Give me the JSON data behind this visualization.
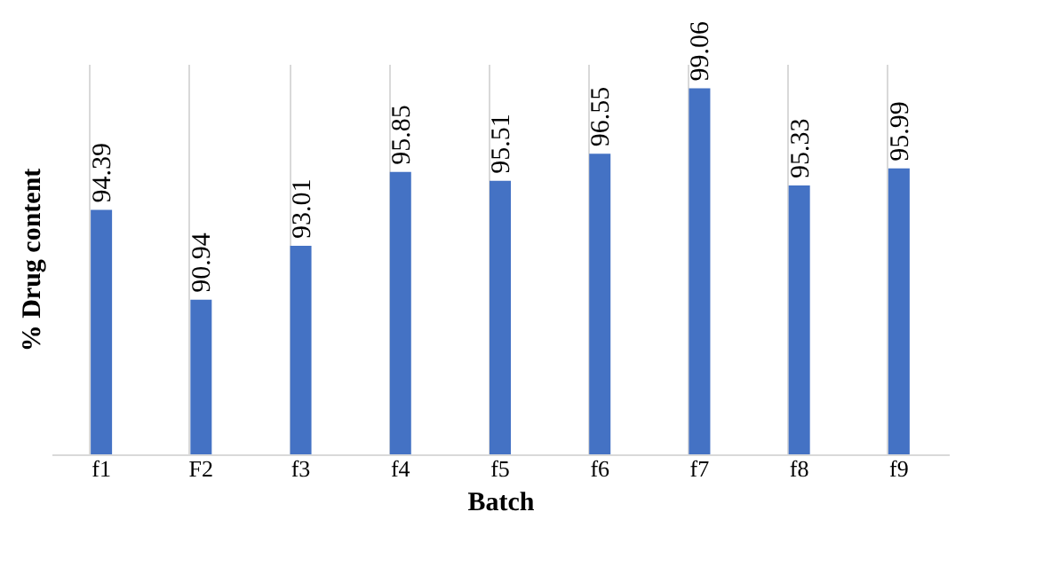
{
  "chart_data": {
    "type": "bar",
    "xlabel": "Batch",
    "ylabel": "% Drug content",
    "categories": [
      "f1",
      "F2",
      "f3",
      "f4",
      "f5",
      "f6",
      "f7",
      "f8",
      "f9"
    ],
    "values": [
      94.39,
      90.94,
      93.01,
      95.85,
      95.51,
      96.55,
      99.06,
      95.33,
      95.99
    ],
    "color": "#4472c4",
    "ylim": [
      85,
      100
    ],
    "tick_labels": "x",
    "grid": "x",
    "data_labels": true
  }
}
